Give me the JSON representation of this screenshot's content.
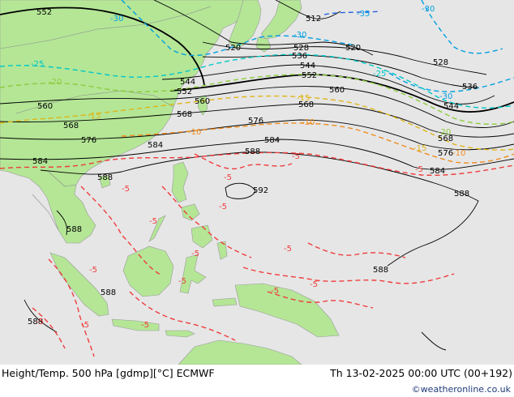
{
  "map": {
    "colors": {
      "land": "#b4e696",
      "sea": "#e6e6e6",
      "height_contour": "#000000",
      "temp_neg30": "#00a0e0",
      "temp_neg25": "#00c8c8",
      "temp_neg20": "#8ccc3c",
      "temp_neg15": "#e0b414",
      "temp_neg10": "#f08c1e",
      "temp_neg5": "#f03c3c"
    },
    "height_labels": [
      "552",
      "512",
      "520",
      "520",
      "528",
      "528",
      "536",
      "536",
      "544",
      "544",
      "544",
      "552",
      "552",
      "560",
      "560",
      "560",
      "568",
      "568",
      "568",
      "568",
      "576",
      "576",
      "576",
      "584",
      "584",
      "584",
      "584",
      "588",
      "588",
      "588",
      "588",
      "588",
      "588",
      "588",
      "592"
    ],
    "temp_labels": [
      "-30",
      "-35",
      "-30",
      "-30",
      "-30",
      "-25",
      "-25",
      "-20",
      "-20",
      "-15",
      "-15",
      "-15",
      "-10",
      "-10",
      "-10",
      "-5",
      "-5",
      "-5",
      "-5",
      "-5",
      "-5",
      "-5",
      "-5",
      "-5",
      "-5",
      "-5",
      "-5",
      "-5",
      "-5",
      "-5"
    ]
  },
  "footer": {
    "title": "Height/Temp. 500 hPa [gdmp][°C] ECMWF",
    "datetime": "Th 13-02-2025 00:00 UTC (00+192)",
    "credit": "©weatheronline.co.uk"
  }
}
